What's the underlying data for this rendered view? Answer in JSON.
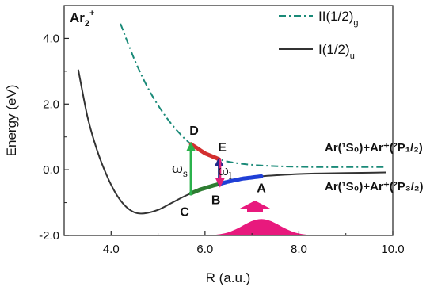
{
  "chart_data": {
    "type": "line",
    "title": "Ar2+",
    "xlabel": "R (a.u.)",
    "ylabel": "Energy (eV)",
    "xlim": [
      3.0,
      10.0
    ],
    "ylim": [
      -2.0,
      5.0
    ],
    "xticks": [
      4.0,
      6.0,
      8.0,
      10.0
    ],
    "xtick_labels": [
      "4.0",
      "6.0",
      "8.0",
      "10.0"
    ],
    "yticks": [
      -2.0,
      0.0,
      2.0,
      4.0
    ],
    "ytick_labels": [
      "-2.0",
      "0.0",
      "2.0",
      "4.0"
    ],
    "grid": false,
    "legend_position": "top-right",
    "series": [
      {
        "name": "II(1/2)g",
        "style": "dash-dot",
        "color": "#1a8a78",
        "x": [
          4.2,
          4.5,
          4.8,
          5.1,
          5.4,
          5.7,
          6.0,
          6.3,
          6.6,
          7.0,
          7.5,
          8.0,
          8.5,
          9.0,
          9.5,
          9.85
        ],
        "y": [
          4.45,
          3.35,
          2.45,
          1.75,
          1.2,
          0.78,
          0.5,
          0.32,
          0.22,
          0.15,
          0.11,
          0.09,
          0.08,
          0.08,
          0.08,
          0.08
        ]
      },
      {
        "name": "I(1/2)u",
        "style": "solid",
        "color": "#333333",
        "x": [
          3.3,
          3.5,
          3.7,
          3.9,
          4.1,
          4.3,
          4.5,
          4.7,
          5.0,
          5.3,
          5.6,
          5.9,
          6.2,
          6.5,
          6.8,
          7.2,
          7.6,
          8.0,
          8.5,
          9.0,
          9.5,
          9.85
        ],
        "y": [
          3.05,
          1.6,
          0.6,
          -0.15,
          -0.72,
          -1.1,
          -1.3,
          -1.33,
          -1.22,
          -1.0,
          -0.78,
          -0.6,
          -0.47,
          -0.36,
          -0.27,
          -0.2,
          -0.16,
          -0.13,
          -0.11,
          -0.1,
          -0.09,
          -0.08
        ]
      }
    ],
    "highlights": [
      {
        "from": "A",
        "to": "B",
        "color": "#1f3fd6",
        "x": [
          7.2,
          6.3
        ],
        "curve": "I(1/2)u"
      },
      {
        "from": "B",
        "to": "C",
        "color": "#2e7d32",
        "x": [
          6.3,
          5.7
        ],
        "curve": "I(1/2)u"
      },
      {
        "from": "D",
        "to": "E",
        "color": "#d32f2f",
        "x": [
          5.7,
          6.3
        ],
        "curve": "II(1/2)g"
      }
    ],
    "transitions": [
      {
        "label": "ωs",
        "x": 5.7,
        "y_from": -0.78,
        "y_to": 0.78,
        "color": "#2bb24c"
      },
      {
        "label": "ωl",
        "x": 6.3,
        "y_from": -0.47,
        "y_to": 0.32,
        "color": "#1f2a8a"
      },
      {
        "label": "",
        "x": 6.32,
        "y_from": 0.32,
        "y_to": -0.47,
        "color": "#e0207a"
      }
    ],
    "points": [
      {
        "label": "A",
        "x": 7.2,
        "y": -0.2
      },
      {
        "label": "B",
        "x": 6.3,
        "y": -0.47
      },
      {
        "label": "C",
        "x": 5.7,
        "y": -0.78
      },
      {
        "label": "D",
        "x": 5.7,
        "y": 0.78
      },
      {
        "label": "E",
        "x": 6.3,
        "y": 0.32
      }
    ],
    "wavepacket": {
      "center": 7.2,
      "width": 0.55,
      "peak": 0.5,
      "color": "#e8197d"
    },
    "annotations": {
      "title_main": "Ar",
      "title_sub": "2",
      "title_sup": "+",
      "asym_upper": "Ar(¹S₀)+Ar⁺(²P₁/₂)",
      "asym_lower": "Ar(¹S₀)+Ar⁺(²P₃/₂)",
      "omega_s": "ωs",
      "omega_l": "ωl"
    }
  },
  "legend": {
    "upper_main": "II(1/2)",
    "upper_sub": "g",
    "lower_main": "I(1/2)",
    "lower_sub": "u"
  }
}
